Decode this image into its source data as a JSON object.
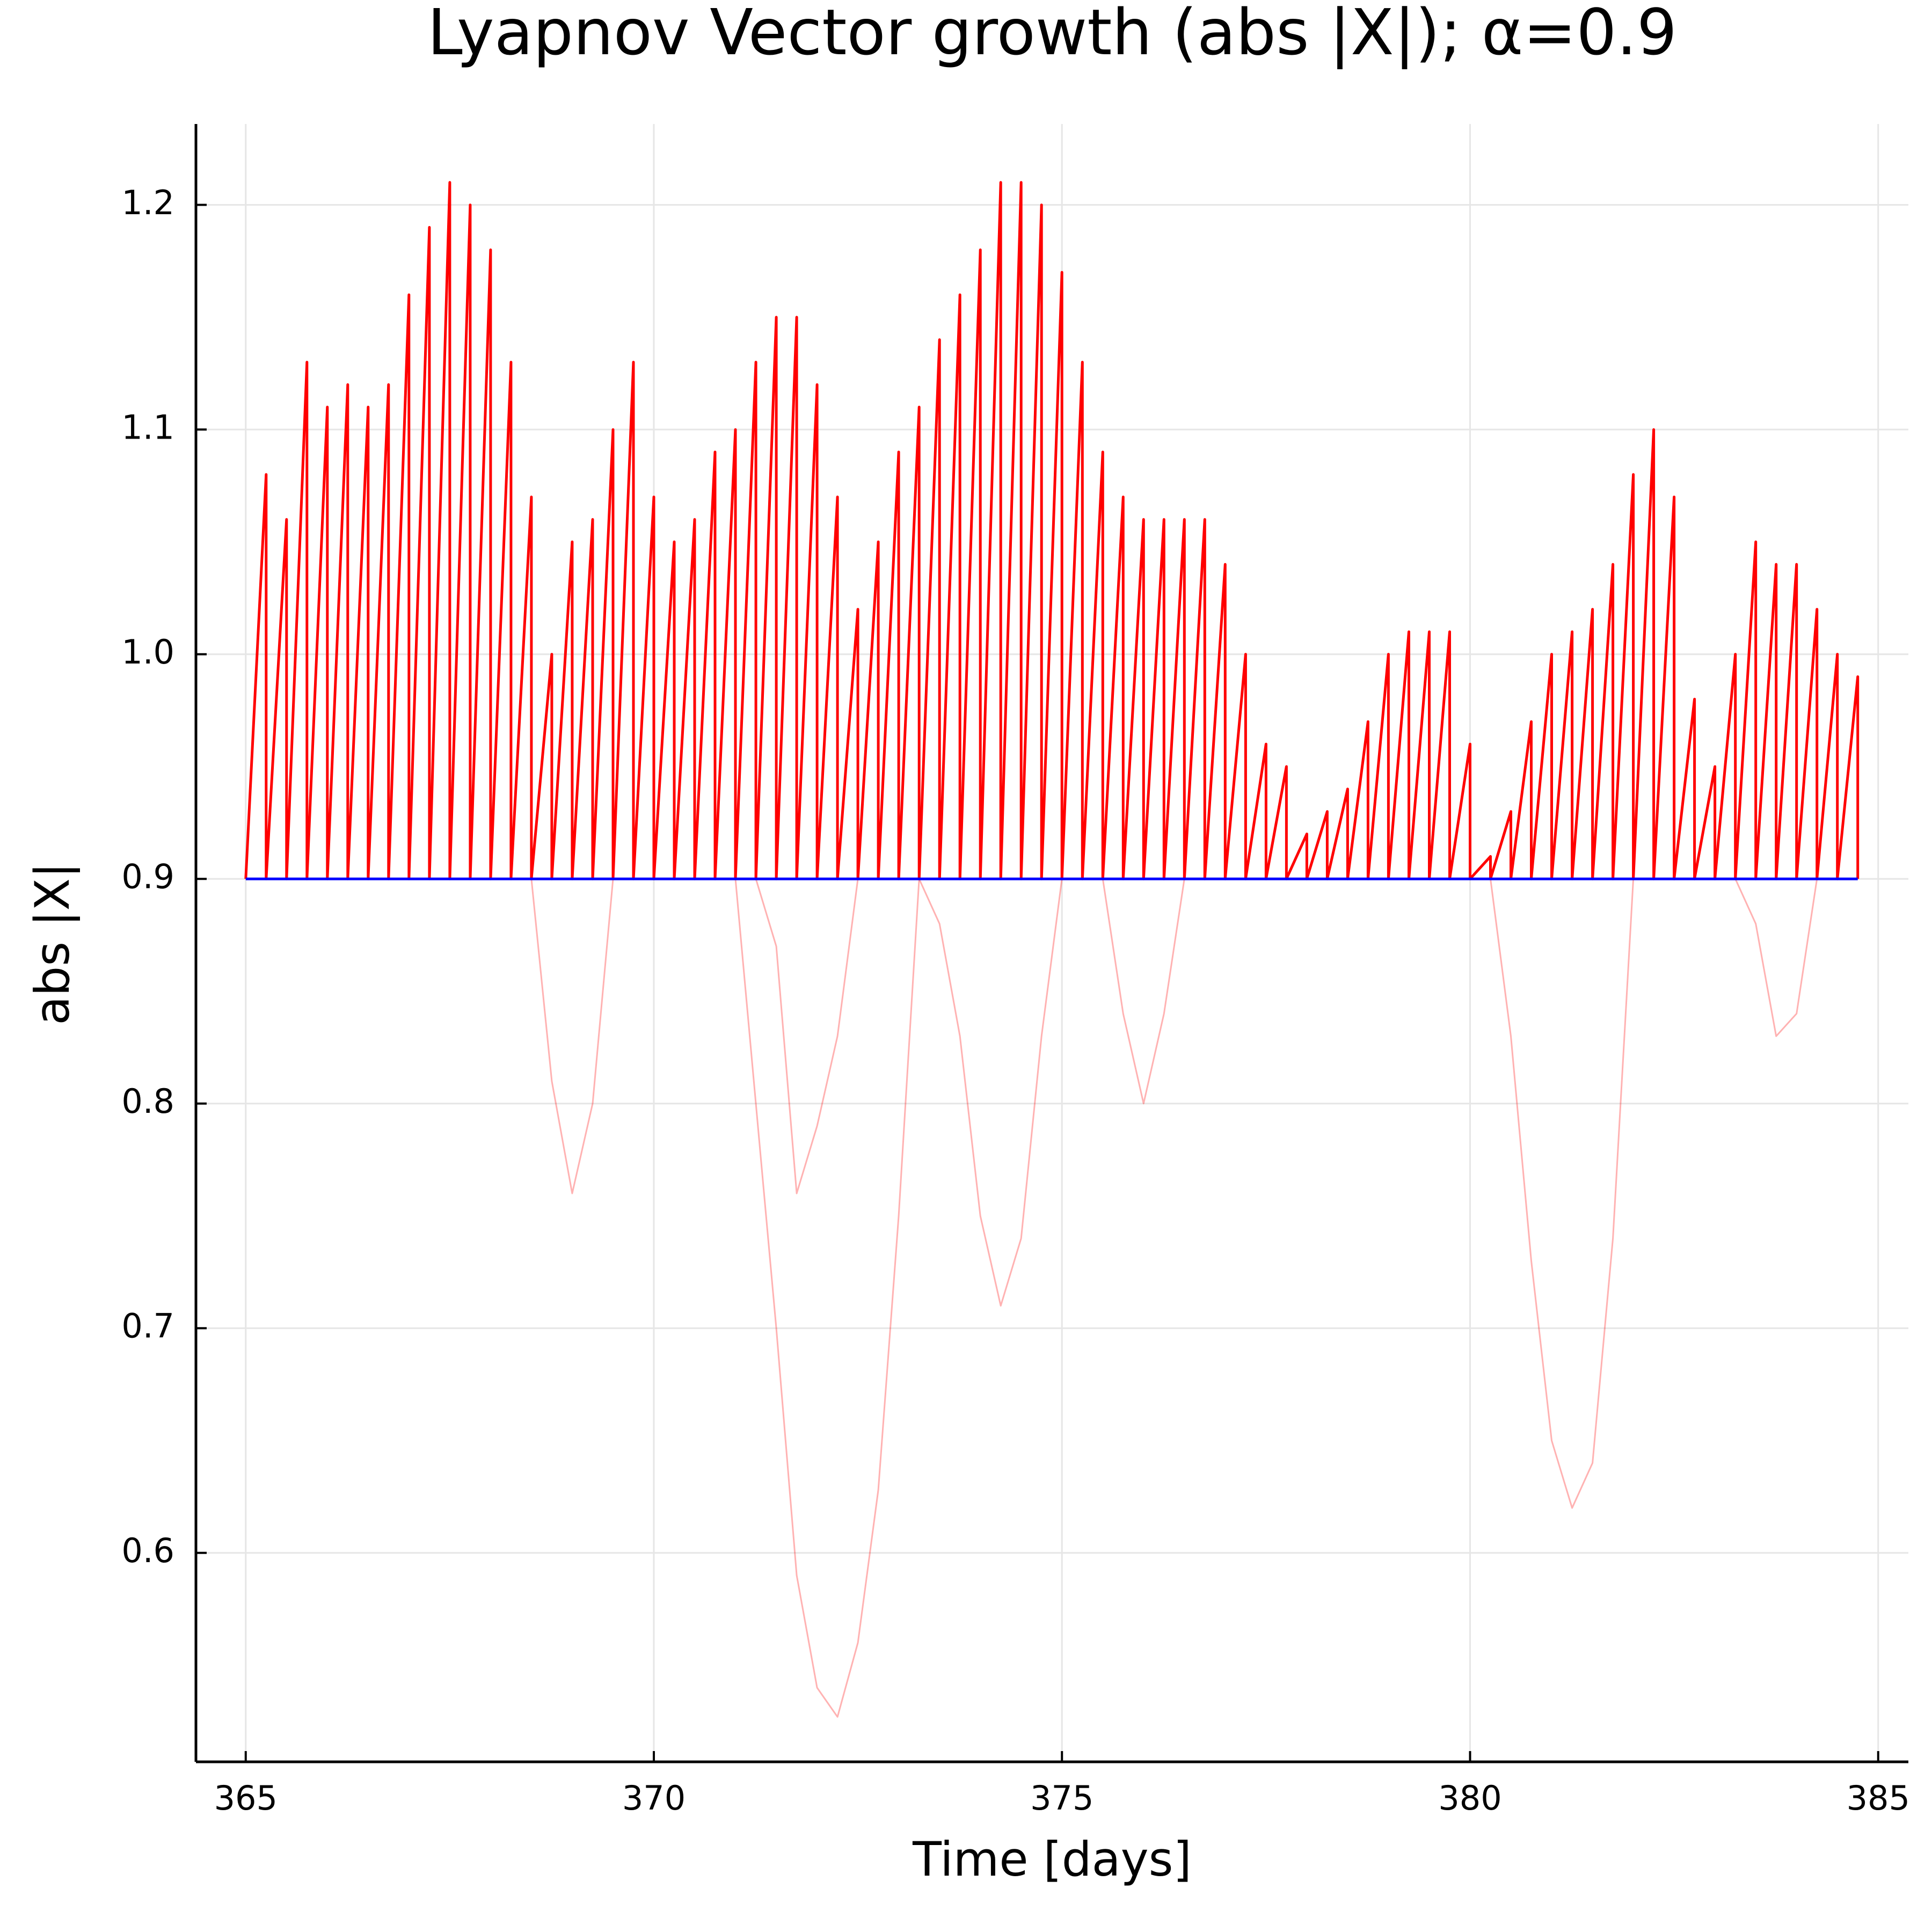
{
  "chart_data": {
    "type": "line",
    "title": "Lyapnov Vector growth (abs |X|); α=0.9",
    "x_label": "Time [days]",
    "y_label": "abs |X|",
    "xlim": [
      364.39,
      385.37
    ],
    "ylim": [
      0.507,
      1.236
    ],
    "xticks": [
      365,
      370,
      375,
      380,
      385
    ],
    "yticks": [
      0.6,
      0.7,
      0.8,
      0.9,
      {
        "value": 1,
        "label": "1.0"
      },
      1.1,
      1.2
    ],
    "grid": true,
    "series": [
      {
        "color": "#ff0000",
        "alpha": 1,
        "x": [
          365,
          365.25,
          365.25,
          365.5,
          365.5,
          365.75,
          365.75,
          366,
          366,
          366.25,
          366.25,
          366.5,
          366.5,
          366.75,
          366.75,
          367,
          367,
          367.25,
          367.25,
          367.5,
          367.5,
          367.75,
          367.75,
          368,
          368,
          368.25,
          368.25,
          368.5,
          368.5,
          368.75,
          368.75,
          369,
          369,
          369.25,
          369.25,
          369.5,
          369.5,
          369.75,
          369.75,
          370,
          370,
          370.25,
          370.25,
          370.5,
          370.5,
          370.75,
          370.75,
          371,
          371,
          371.25,
          371.25,
          371.5,
          371.5,
          371.75,
          371.75,
          372,
          372,
          372.25,
          372.25,
          372.5,
          372.5,
          372.75,
          372.75,
          373,
          373,
          373.25,
          373.25,
          373.5,
          373.5,
          373.75,
          373.75,
          374,
          374,
          374.25,
          374.25,
          374.5,
          374.5,
          374.75,
          374.75,
          375,
          375,
          375.25,
          375.25,
          375.5,
          375.5,
          375.75,
          375.75,
          376,
          376,
          376.25,
          376.25,
          376.5,
          376.5,
          376.75,
          376.75,
          377,
          377,
          377.25,
          377.25,
          377.5,
          377.5,
          377.75,
          377.75,
          378,
          378,
          378.25,
          378.25,
          378.5,
          378.5,
          378.75,
          378.75,
          379,
          379,
          379.25,
          379.25,
          379.5,
          379.5,
          379.75,
          379.75,
          380,
          380,
          380.25,
          380.25,
          380.5,
          380.5,
          380.75,
          380.75,
          381,
          381,
          381.25,
          381.25,
          381.5,
          381.5,
          381.75,
          381.75,
          382,
          382,
          382.25,
          382.25,
          382.5,
          382.5,
          382.75,
          382.75,
          383,
          383,
          383.25,
          383.25,
          383.5,
          383.5,
          383.75,
          383.75,
          384,
          384,
          384.25,
          384.25,
          384.5,
          384.5,
          384.75,
          384.75
        ],
        "values": [
          0.9,
          1.08,
          0.9,
          1.06,
          0.9,
          1.13,
          0.9,
          1.11,
          0.9,
          1.12,
          0.9,
          1.11,
          0.9,
          1.12,
          0.9,
          1.16,
          0.9,
          1.19,
          0.9,
          1.21,
          0.9,
          1.2,
          0.9,
          1.18,
          0.9,
          1.13,
          0.9,
          1.07,
          0.9,
          1.0,
          0.9,
          1.05,
          0.9,
          1.06,
          0.9,
          1.1,
          0.9,
          1.13,
          0.9,
          1.07,
          0.9,
          1.05,
          0.9,
          1.06,
          0.9,
          1.09,
          0.9,
          1.1,
          0.9,
          1.13,
          0.9,
          1.15,
          0.9,
          1.15,
          0.9,
          1.12,
          0.9,
          1.07,
          0.9,
          1.02,
          0.9,
          1.05,
          0.9,
          1.09,
          0.9,
          1.11,
          0.9,
          1.14,
          0.9,
          1.16,
          0.9,
          1.18,
          0.9,
          1.21,
          0.9,
          1.21,
          0.9,
          1.2,
          0.9,
          1.17,
          0.9,
          1.13,
          0.9,
          1.09,
          0.9,
          1.07,
          0.9,
          1.06,
          0.9,
          1.06,
          0.9,
          1.06,
          0.9,
          1.06,
          0.9,
          1.04,
          0.9,
          1.0,
          0.9,
          0.96,
          0.9,
          0.95,
          0.9,
          0.92,
          0.9,
          0.93,
          0.9,
          0.94,
          0.9,
          0.97,
          0.9,
          1.0,
          0.9,
          1.01,
          0.9,
          1.01,
          0.9,
          1.01,
          0.9,
          0.96,
          0.9,
          0.91,
          0.9,
          0.93,
          0.9,
          0.97,
          0.9,
          1.0,
          0.9,
          1.01,
          0.9,
          1.02,
          0.9,
          1.04,
          0.9,
          1.08,
          0.9,
          1.1,
          0.9,
          1.07,
          0.9,
          0.98,
          0.9,
          0.95,
          0.9,
          1.0,
          0.9,
          1.05,
          0.9,
          1.04,
          0.9,
          1.04,
          0.9,
          1.02,
          0.9,
          1.0,
          0.9,
          0.99,
          0.9
        ]
      },
      {
        "color": "#ff0000",
        "alpha": 0.3,
        "x": [
          371,
          371.5,
          371.75,
          372,
          372.25,
          372.5,
          372.75,
          373,
          373.25
        ],
        "values": [
          0.9,
          0.7,
          0.59,
          0.54,
          0.527,
          0.56,
          0.628,
          0.75,
          0.9
        ]
      },
      {
        "color": "#ff0000",
        "alpha": 0.3,
        "x": [
          371.25,
          371.5,
          371.75,
          372,
          372.25,
          372.5
        ],
        "values": [
          0.9,
          0.87,
          0.76,
          0.79,
          0.83,
          0.9
        ]
      },
      {
        "color": "#ff0000",
        "alpha": 0.3,
        "x": [
          373.25,
          373.5,
          373.75,
          374,
          374.25,
          374.5,
          374.75,
          375
        ],
        "values": [
          0.9,
          0.88,
          0.83,
          0.75,
          0.71,
          0.74,
          0.83,
          0.9
        ]
      },
      {
        "color": "#ff0000",
        "alpha": 0.3,
        "x": [
          380.25,
          380.5,
          380.75,
          381,
          381.25,
          381.5,
          381.75,
          382
        ],
        "values": [
          0.9,
          0.83,
          0.73,
          0.65,
          0.62,
          0.64,
          0.74,
          0.9
        ]
      },
      {
        "color": "#ff0000",
        "alpha": 0.3,
        "x": [
          368.5,
          368.75,
          369,
          369.25,
          369.5
        ],
        "values": [
          0.9,
          0.81,
          0.76,
          0.8,
          0.9
        ]
      },
      {
        "color": "#ff0000",
        "alpha": 0.3,
        "x": [
          375.5,
          375.75,
          376,
          376.25,
          376.5
        ],
        "values": [
          0.9,
          0.84,
          0.8,
          0.84,
          0.9
        ]
      },
      {
        "color": "#ff0000",
        "alpha": 0.3,
        "x": [
          383.25,
          383.5,
          383.75,
          384,
          384.25
        ],
        "values": [
          0.9,
          0.88,
          0.83,
          0.84,
          0.9
        ]
      },
      {
        "color": "#0000ff",
        "alpha": 1,
        "x": [
          365,
          384.75
        ],
        "values": [
          0.9,
          0.9
        ]
      }
    ]
  }
}
